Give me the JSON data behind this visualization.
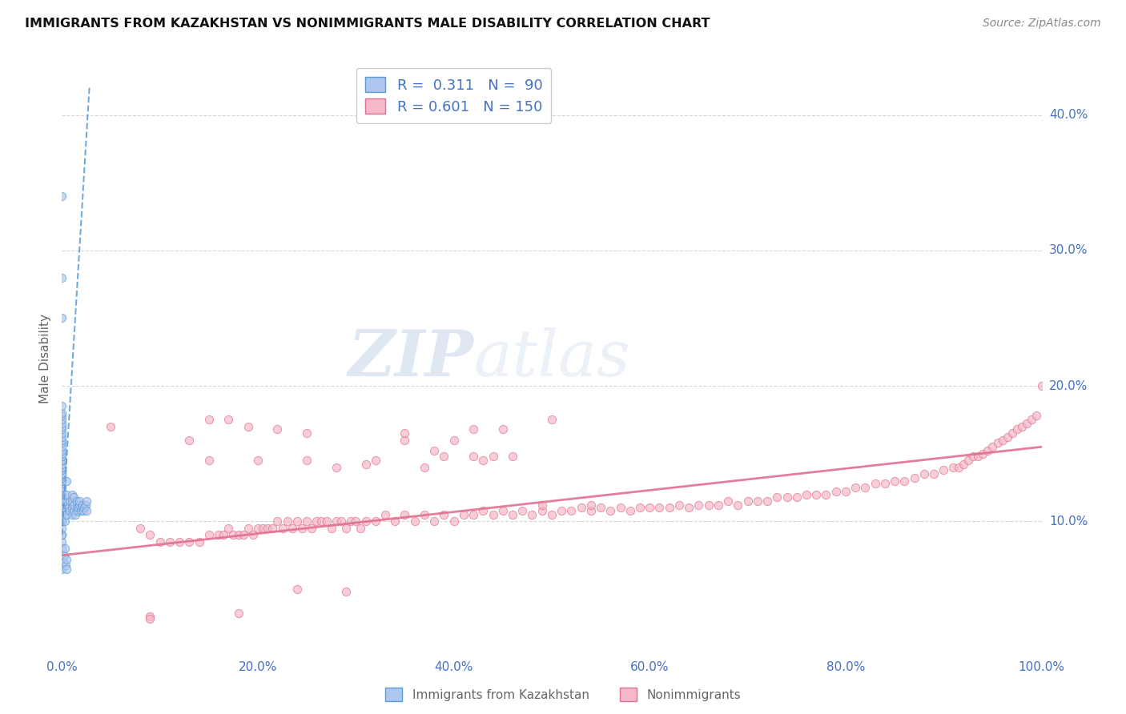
{
  "title": "IMMIGRANTS FROM KAZAKHSTAN VS NONIMMIGRANTS MALE DISABILITY CORRELATION CHART",
  "source": "Source: ZipAtlas.com",
  "ylabel": "Male Disability",
  "y_ticks": [
    0.1,
    0.2,
    0.3,
    0.4
  ],
  "y_tick_labels": [
    "10.0%",
    "20.0%",
    "30.0%",
    "40.0%"
  ],
  "x_ticks": [
    0.0,
    0.2,
    0.4,
    0.6,
    0.8,
    1.0
  ],
  "x_tick_labels": [
    "0.0%",
    "20.0%",
    "40.0%",
    "60.0%",
    "80.0%",
    "100.0%"
  ],
  "legend_R1": "0.311",
  "legend_N1": "90",
  "legend_R2": "0.601",
  "legend_N2": "150",
  "legend_label1": "Immigrants from Kazakhstan",
  "legend_label2": "Nonimmigrants",
  "watermark_zip": "ZIP",
  "watermark_atlas": "atlas",
  "blue_scatter_x": [
    0.0,
    0.0,
    0.0,
    0.0,
    0.0,
    0.0,
    0.0,
    0.0,
    0.0,
    0.0,
    0.0,
    0.0,
    0.0,
    0.0,
    0.0,
    0.0,
    0.0,
    0.0,
    0.0,
    0.0,
    0.0,
    0.0,
    0.0,
    0.0,
    0.0,
    0.0,
    0.0,
    0.0,
    0.0,
    0.0,
    0.0,
    0.0,
    0.0,
    0.0,
    0.0,
    0.0,
    0.0,
    0.0,
    0.0,
    0.0,
    0.0,
    0.0,
    0.0,
    0.0,
    0.0,
    0.0,
    0.0,
    0.0,
    0.0,
    0.0,
    0.003,
    0.003,
    0.005,
    0.005,
    0.005,
    0.007,
    0.008,
    0.008,
    0.01,
    0.01,
    0.01,
    0.01,
    0.012,
    0.012,
    0.012,
    0.014,
    0.015,
    0.015,
    0.016,
    0.017,
    0.018,
    0.018,
    0.019,
    0.02,
    0.021,
    0.022,
    0.023,
    0.024,
    0.025,
    0.025,
    0.0,
    0.0,
    0.0,
    0.0,
    0.001,
    0.002,
    0.003,
    0.004,
    0.005,
    0.005
  ],
  "blue_scatter_y": [
    0.08,
    0.085,
    0.09,
    0.09,
    0.095,
    0.1,
    0.1,
    0.1,
    0.1,
    0.105,
    0.105,
    0.108,
    0.11,
    0.11,
    0.112,
    0.115,
    0.115,
    0.118,
    0.12,
    0.12,
    0.122,
    0.125,
    0.125,
    0.128,
    0.13,
    0.13,
    0.132,
    0.135,
    0.135,
    0.138,
    0.14,
    0.14,
    0.142,
    0.145,
    0.145,
    0.148,
    0.15,
    0.152,
    0.155,
    0.158,
    0.16,
    0.162,
    0.165,
    0.168,
    0.17,
    0.172,
    0.175,
    0.178,
    0.18,
    0.185,
    0.1,
    0.115,
    0.105,
    0.12,
    0.13,
    0.11,
    0.108,
    0.115,
    0.105,
    0.11,
    0.115,
    0.12,
    0.108,
    0.112,
    0.118,
    0.105,
    0.11,
    0.115,
    0.108,
    0.11,
    0.112,
    0.115,
    0.108,
    0.11,
    0.112,
    0.108,
    0.11,
    0.112,
    0.108,
    0.115,
    0.34,
    0.28,
    0.25,
    0.065,
    0.07,
    0.075,
    0.08,
    0.068,
    0.065,
    0.072
  ],
  "pink_scatter_x": [
    0.05,
    0.08,
    0.09,
    0.1,
    0.11,
    0.12,
    0.13,
    0.14,
    0.15,
    0.16,
    0.165,
    0.17,
    0.175,
    0.18,
    0.185,
    0.19,
    0.195,
    0.2,
    0.205,
    0.21,
    0.215,
    0.22,
    0.225,
    0.23,
    0.235,
    0.24,
    0.245,
    0.25,
    0.255,
    0.26,
    0.265,
    0.27,
    0.275,
    0.28,
    0.285,
    0.29,
    0.295,
    0.3,
    0.305,
    0.31,
    0.32,
    0.33,
    0.34,
    0.35,
    0.36,
    0.37,
    0.38,
    0.39,
    0.4,
    0.41,
    0.42,
    0.43,
    0.44,
    0.45,
    0.46,
    0.47,
    0.48,
    0.49,
    0.5,
    0.51,
    0.52,
    0.53,
    0.54,
    0.55,
    0.56,
    0.57,
    0.58,
    0.59,
    0.6,
    0.61,
    0.62,
    0.63,
    0.64,
    0.65,
    0.66,
    0.67,
    0.68,
    0.69,
    0.7,
    0.71,
    0.72,
    0.73,
    0.74,
    0.75,
    0.76,
    0.77,
    0.78,
    0.79,
    0.8,
    0.81,
    0.82,
    0.83,
    0.84,
    0.85,
    0.86,
    0.87,
    0.88,
    0.89,
    0.9,
    0.91,
    0.915,
    0.92,
    0.925,
    0.93,
    0.935,
    0.94,
    0.945,
    0.95,
    0.955,
    0.96,
    0.965,
    0.97,
    0.975,
    0.98,
    0.985,
    0.99,
    0.995,
    1.0,
    0.15,
    0.2,
    0.25,
    0.28,
    0.32,
    0.37,
    0.42,
    0.46,
    0.15,
    0.25,
    0.35,
    0.4,
    0.45,
    0.5,
    0.13,
    0.17,
    0.22,
    0.35,
    0.42,
    0.43,
    0.39,
    0.44,
    0.31,
    0.38,
    0.19,
    0.09,
    0.09,
    0.18,
    0.24,
    0.29,
    0.49,
    0.54
  ],
  "pink_scatter_y": [
    0.17,
    0.095,
    0.09,
    0.085,
    0.085,
    0.085,
    0.085,
    0.085,
    0.09,
    0.09,
    0.09,
    0.095,
    0.09,
    0.09,
    0.09,
    0.095,
    0.09,
    0.095,
    0.095,
    0.095,
    0.095,
    0.1,
    0.095,
    0.1,
    0.095,
    0.1,
    0.095,
    0.1,
    0.095,
    0.1,
    0.1,
    0.1,
    0.095,
    0.1,
    0.1,
    0.095,
    0.1,
    0.1,
    0.095,
    0.1,
    0.1,
    0.105,
    0.1,
    0.105,
    0.1,
    0.105,
    0.1,
    0.105,
    0.1,
    0.105,
    0.105,
    0.108,
    0.105,
    0.108,
    0.105,
    0.108,
    0.105,
    0.108,
    0.105,
    0.108,
    0.108,
    0.11,
    0.108,
    0.11,
    0.108,
    0.11,
    0.108,
    0.11,
    0.11,
    0.11,
    0.11,
    0.112,
    0.11,
    0.112,
    0.112,
    0.112,
    0.115,
    0.112,
    0.115,
    0.115,
    0.115,
    0.118,
    0.118,
    0.118,
    0.12,
    0.12,
    0.12,
    0.122,
    0.122,
    0.125,
    0.125,
    0.128,
    0.128,
    0.13,
    0.13,
    0.132,
    0.135,
    0.135,
    0.138,
    0.14,
    0.14,
    0.142,
    0.145,
    0.148,
    0.148,
    0.15,
    0.152,
    0.155,
    0.158,
    0.16,
    0.162,
    0.165,
    0.168,
    0.17,
    0.172,
    0.175,
    0.178,
    0.2,
    0.145,
    0.145,
    0.145,
    0.14,
    0.145,
    0.14,
    0.148,
    0.148,
    0.175,
    0.165,
    0.16,
    0.16,
    0.168,
    0.175,
    0.16,
    0.175,
    0.168,
    0.165,
    0.168,
    0.145,
    0.148,
    0.148,
    0.142,
    0.152,
    0.17,
    0.03,
    0.028,
    0.032,
    0.05,
    0.048,
    0.112,
    0.112
  ],
  "blue_line_x": [
    0.0,
    0.028
  ],
  "blue_line_y": [
    0.09,
    0.42
  ],
  "pink_line_x": [
    0.0,
    1.0
  ],
  "pink_line_y": [
    0.075,
    0.155
  ],
  "xlim": [
    0.0,
    1.0
  ],
  "ylim": [
    0.0,
    0.44
  ],
  "scatter_size": 55,
  "scatter_alpha": 0.7,
  "blue_face": "#aec6f0",
  "blue_edge": "#5b9bd5",
  "pink_face": "#f4b8c8",
  "pink_edge": "#e07090",
  "grid_color": "#cccccc",
  "bg_color": "#ffffff",
  "tick_color": "#4472c4",
  "label_color": "#666666",
  "title_color": "#111111",
  "source_color": "#888888"
}
